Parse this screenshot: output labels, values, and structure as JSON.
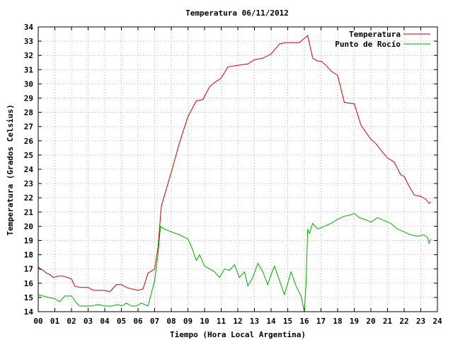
{
  "chart_data": {
    "type": "line",
    "title": "Temperatura 06/11/2012",
    "xlabel": "Tiempo (Hora Local Argentina)",
    "ylabel": "Temperatura (Grados Celsius)",
    "xlim": [
      0,
      24
    ],
    "ylim": [
      14,
      34
    ],
    "x_ticks": [
      "00",
      "01",
      "02",
      "03",
      "04",
      "05",
      "06",
      "07",
      "08",
      "09",
      "10",
      "11",
      "12",
      "13",
      "14",
      "15",
      "16",
      "17",
      "18",
      "19",
      "20",
      "21",
      "22",
      "23",
      "24"
    ],
    "y_ticks": [
      "14",
      "15",
      "16",
      "17",
      "18",
      "19",
      "20",
      "21",
      "22",
      "23",
      "24",
      "25",
      "26",
      "27",
      "28",
      "29",
      "30",
      "31",
      "32",
      "33",
      "34"
    ],
    "grid": true,
    "legend_position": "top-right",
    "series": [
      {
        "name": "Temperatura",
        "color": "#cc0000",
        "x": [
          0.0,
          0.1,
          0.3,
          0.5,
          0.7,
          0.9,
          1.2,
          1.5,
          2.0,
          2.2,
          2.5,
          3.0,
          3.3,
          3.6,
          4.0,
          4.3,
          4.7,
          5.0,
          5.3,
          5.6,
          6.0,
          6.3,
          6.6,
          7.0,
          7.2,
          7.4,
          7.6,
          8.0,
          8.5,
          9.0,
          9.5,
          9.9,
          10.3,
          10.6,
          11.0,
          11.4,
          12.0,
          12.6,
          13.0,
          13.5,
          14.0,
          14.5,
          14.9,
          15.3,
          15.7,
          16.0,
          16.2,
          16.35,
          16.5,
          16.8,
          17.0,
          17.3,
          17.6,
          18.0,
          18.4,
          19.0,
          19.4,
          20.0,
          20.3,
          20.7,
          21.0,
          21.4,
          21.8,
          22.0,
          22.3,
          22.6,
          23.0,
          23.3,
          23.5,
          23.6
        ],
        "y": [
          17.2,
          17.0,
          16.9,
          16.7,
          16.6,
          16.4,
          16.5,
          16.5,
          16.3,
          15.8,
          15.7,
          15.7,
          15.5,
          15.5,
          15.5,
          15.4,
          15.9,
          15.9,
          15.7,
          15.6,
          15.5,
          15.6,
          16.7,
          17.0,
          18.5,
          21.4,
          22.2,
          23.8,
          25.9,
          27.7,
          28.8,
          28.9,
          29.8,
          30.1,
          30.4,
          31.2,
          31.3,
          31.4,
          31.7,
          31.8,
          32.1,
          32.8,
          32.9,
          32.9,
          32.9,
          33.2,
          33.4,
          32.6,
          31.8,
          31.6,
          31.6,
          31.3,
          30.9,
          30.6,
          28.7,
          28.6,
          27.1,
          26.1,
          25.8,
          25.2,
          24.8,
          24.5,
          23.6,
          23.5,
          22.8,
          22.2,
          22.1,
          21.9,
          21.6,
          21.7
        ]
      },
      {
        "name": "Punto de Rocío",
        "color": "#00aa00",
        "x": [
          0.0,
          0.3,
          0.6,
          1.0,
          1.3,
          1.6,
          2.0,
          2.3,
          2.5,
          2.8,
          3.2,
          3.6,
          4.0,
          4.4,
          4.8,
          5.0,
          5.3,
          5.6,
          5.9,
          6.2,
          6.6,
          7.0,
          7.2,
          7.35,
          7.6,
          8.0,
          8.5,
          9.0,
          9.2,
          9.5,
          9.7,
          10.0,
          10.3,
          10.6,
          10.9,
          11.2,
          11.5,
          11.8,
          12.1,
          12.4,
          12.6,
          12.9,
          13.2,
          13.5,
          13.8,
          14.0,
          14.2,
          14.5,
          14.8,
          15.0,
          15.2,
          15.5,
          15.8,
          16.0,
          16.1,
          16.2,
          16.3,
          16.5,
          16.8,
          17.2,
          17.6,
          18.0,
          18.4,
          18.8,
          19.0,
          19.3,
          19.6,
          20.0,
          20.4,
          20.8,
          21.2,
          21.6,
          22.0,
          22.4,
          22.8,
          23.2,
          23.4,
          23.5,
          23.6
        ],
        "y": [
          15.2,
          15.1,
          15.0,
          14.9,
          14.7,
          15.1,
          15.1,
          14.6,
          14.4,
          14.4,
          14.4,
          14.5,
          14.4,
          14.4,
          14.5,
          14.4,
          14.6,
          14.4,
          14.4,
          14.6,
          14.4,
          16.2,
          18.0,
          20.0,
          19.8,
          19.6,
          19.4,
          19.1,
          18.6,
          17.6,
          18.0,
          17.2,
          17.0,
          16.8,
          16.4,
          17.0,
          16.9,
          17.3,
          16.4,
          16.8,
          15.8,
          16.4,
          17.4,
          16.8,
          15.9,
          16.6,
          17.2,
          16.2,
          15.2,
          16.0,
          16.8,
          15.8,
          15.1,
          14.0,
          16.0,
          19.8,
          19.5,
          20.2,
          19.8,
          20.0,
          20.2,
          20.5,
          20.7,
          20.8,
          20.9,
          20.6,
          20.5,
          20.3,
          20.6,
          20.4,
          20.2,
          19.8,
          19.6,
          19.4,
          19.3,
          19.4,
          19.2,
          18.8,
          19.1
        ]
      }
    ]
  }
}
